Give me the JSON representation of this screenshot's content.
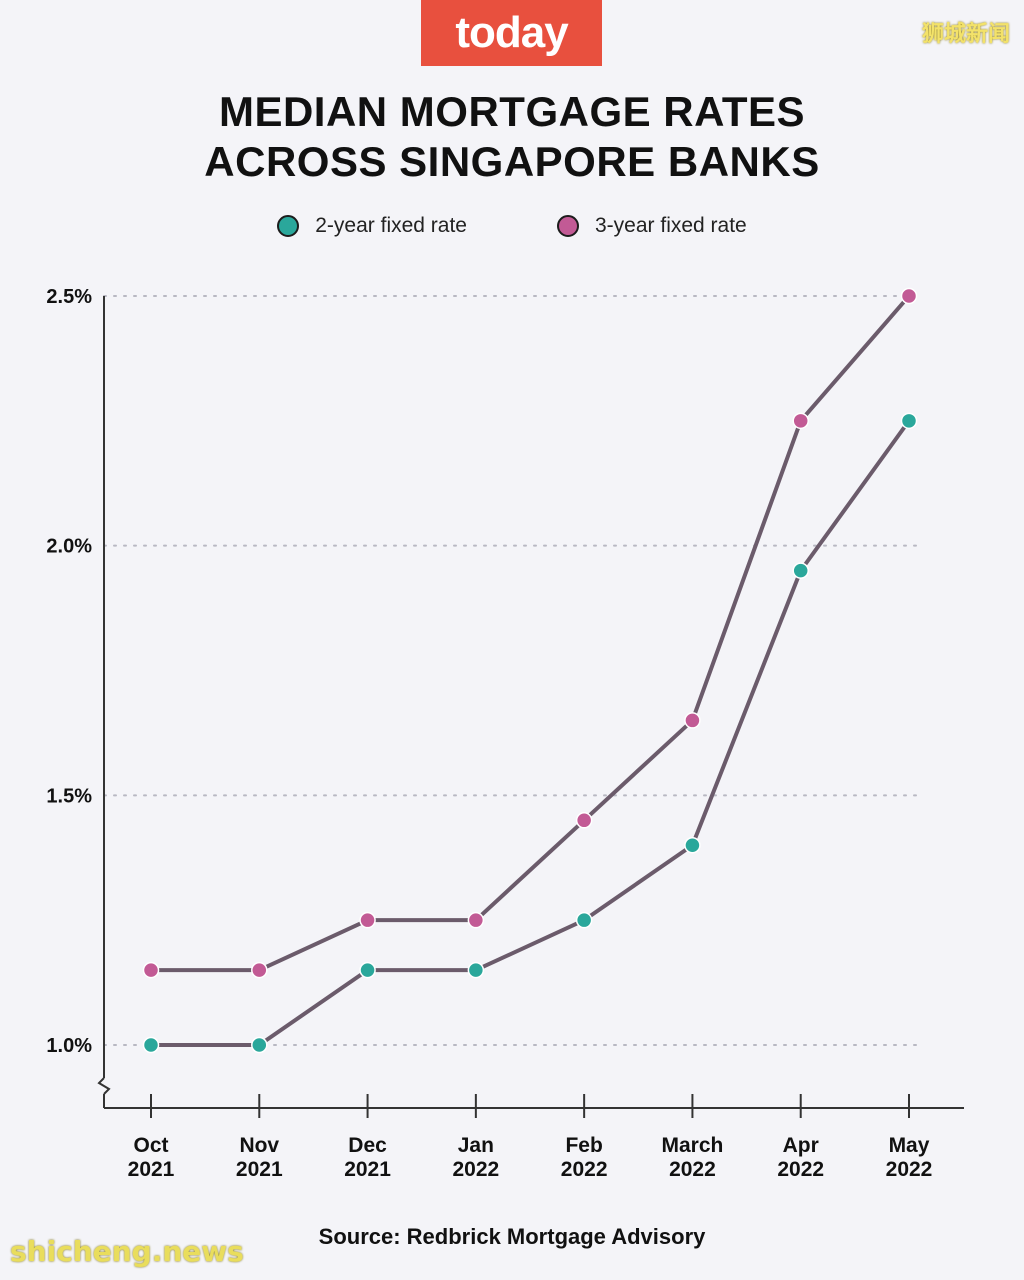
{
  "brand": {
    "logo": "today"
  },
  "watermarks": {
    "top_right": "狮城新闻",
    "bottom_left": "shicheng.news"
  },
  "title_lines": [
    "MEDIAN MORTGAGE RATES",
    "ACROSS SINGAPORE BANKS"
  ],
  "source": "Source: Redbrick Mortgage Advisory",
  "colors": {
    "two_year": "#2aa79b",
    "three_year": "#c25a95",
    "line": "#6b5b6b",
    "grid": "#b8b8c2"
  },
  "chart_data": {
    "type": "line",
    "title": "MEDIAN MORTGAGE RATES ACROSS SINGAPORE BANKS",
    "categories": [
      [
        "Oct",
        "2021"
      ],
      [
        "Nov",
        "2021"
      ],
      [
        "Dec",
        "2021"
      ],
      [
        "Jan",
        "2022"
      ],
      [
        "Feb",
        "2022"
      ],
      [
        "March",
        "2022"
      ],
      [
        "Apr",
        "2022"
      ],
      [
        "May",
        "2022"
      ]
    ],
    "y_ticks": [
      1.0,
      1.5,
      2.0,
      2.5
    ],
    "y_tick_labels": [
      "1.0%",
      "1.5%",
      "2.0%",
      "2.5%"
    ],
    "ylim": [
      1.0,
      2.5
    ],
    "axis_break": true,
    "grid": true,
    "legend_position": "top",
    "series": [
      {
        "name": "2-year fixed rate",
        "values": [
          1.0,
          1.0,
          1.15,
          1.15,
          1.25,
          1.4,
          1.95,
          2.25
        ]
      },
      {
        "name": "3-year fixed rate",
        "values": [
          1.15,
          1.15,
          1.25,
          1.25,
          1.45,
          1.65,
          2.25,
          2.5
        ]
      }
    ]
  }
}
